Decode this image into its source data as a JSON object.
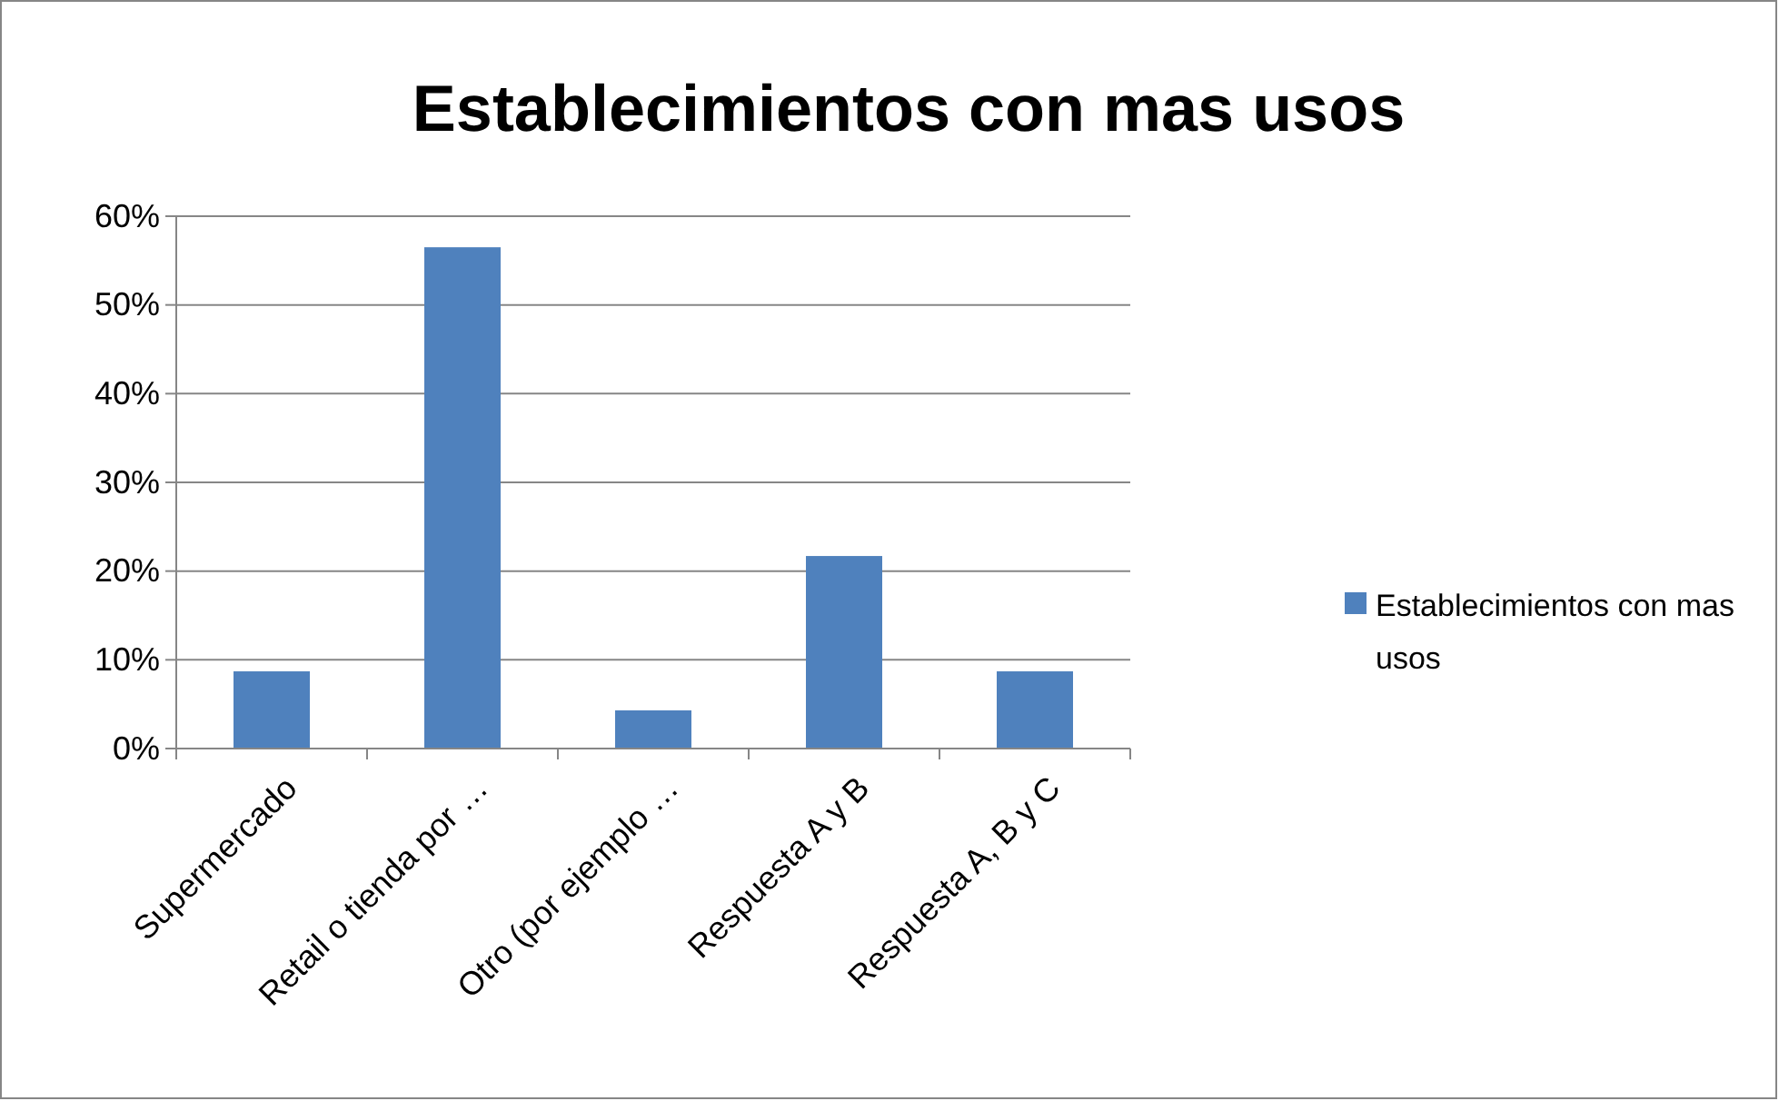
{
  "chart_data": {
    "type": "bar",
    "title": "Establecimientos con mas usos",
    "categories": [
      "Supermercado",
      "Retail o tienda por …",
      "Otro (por ejemplo …",
      "Respuesta A y B",
      "Respuesta A, B y C"
    ],
    "series": [
      {
        "name": "Establecimientos con mas usos",
        "color": "#4f81bd",
        "values": [
          8.7,
          56.5,
          4.3,
          21.7,
          8.7
        ]
      }
    ],
    "ylim": [
      0,
      60
    ],
    "yticks": [
      {
        "value": 0,
        "label": "0%"
      },
      {
        "value": 10,
        "label": "10%"
      },
      {
        "value": 20,
        "label": "20%"
      },
      {
        "value": 30,
        "label": "30%"
      },
      {
        "value": 40,
        "label": "40%"
      },
      {
        "value": 50,
        "label": "50%"
      },
      {
        "value": 60,
        "label": "60%"
      }
    ],
    "grid": "y",
    "legend": "right"
  }
}
